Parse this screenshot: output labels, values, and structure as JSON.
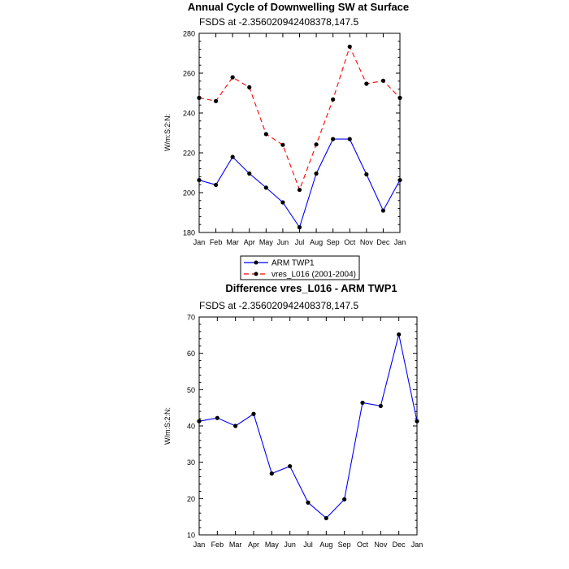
{
  "chart_data": [
    {
      "type": "line",
      "title": "Annual Cycle of Downwelling SW at Surface",
      "subtitle": "FSDS at -2.356020942408378,147.5",
      "xlabel": "",
      "ylabel": "W/m:S:2:N:",
      "categories": [
        "Jan",
        "Feb",
        "Mar",
        "Apr",
        "May",
        "Jun",
        "Jul",
        "Aug",
        "Sep",
        "Oct",
        "Nov",
        "Dec",
        "Jan"
      ],
      "ylim": [
        180,
        280
      ],
      "yticks": [
        180,
        200,
        220,
        240,
        260,
        280
      ],
      "series": [
        {
          "name": "ARM TWP1",
          "color": "#0000ff",
          "dash": "none",
          "values": [
            206.3,
            203.9,
            217.9,
            209.6,
            202.5,
            195.1,
            182.6,
            209.6,
            226.9,
            226.9,
            209.2,
            191.0,
            206.3
          ]
        },
        {
          "name": "vres_L016 (2001-2004)",
          "color": "#ff0000",
          "dash": "6,4",
          "values": [
            247.6,
            246.0,
            257.9,
            252.9,
            229.4,
            224.0,
            201.4,
            224.2,
            246.8,
            273.3,
            254.7,
            256.2,
            247.6
          ]
        }
      ],
      "legend": [
        "ARM TWP1",
        "vres_L016 (2001-2004)"
      ]
    },
    {
      "type": "line",
      "title": "Difference vres_L016 - ARM TWP1",
      "subtitle": "FSDS at -2.356020942408378,147.5",
      "xlabel": "",
      "ylabel": "W/m:S:2:N:",
      "categories": [
        "Jan",
        "Feb",
        "Mar",
        "Apr",
        "May",
        "Jun",
        "Jul",
        "Aug",
        "Sep",
        "Oct",
        "Nov",
        "Dec",
        "Jan"
      ],
      "ylim": [
        10,
        70
      ],
      "yticks": [
        10,
        20,
        30,
        40,
        50,
        60,
        70
      ],
      "series": [
        {
          "name": "Difference",
          "color": "#0000ff",
          "dash": "none",
          "values": [
            41.3,
            42.2,
            40.0,
            43.3,
            26.9,
            28.9,
            18.9,
            14.6,
            19.8,
            46.4,
            45.5,
            65.2,
            41.3
          ]
        }
      ]
    }
  ]
}
